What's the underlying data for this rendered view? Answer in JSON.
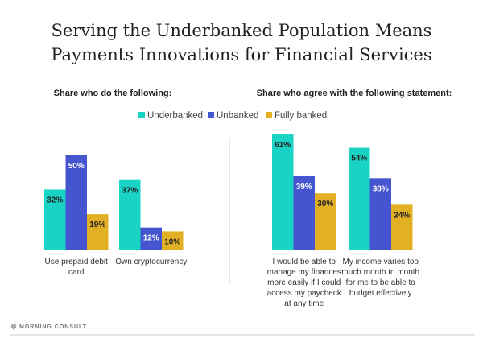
{
  "title_lines": [
    "Serving the Underbanked Population Means",
    "Payments Innovations for Financial Services"
  ],
  "logo_text": "MORNING CONSULT",
  "colors": {
    "Underbanked": "#19d3c5",
    "Unbanked": "#4554cf",
    "Fully banked": "#e2b024"
  },
  "legend": [
    "Underbanked",
    "Unbanked",
    "Fully banked"
  ],
  "chart_data": [
    {
      "type": "bar",
      "title": "Share who do the following:",
      "unit": "%",
      "ylim": [
        0,
        65
      ],
      "categories": [
        [
          "Use prepaid debit",
          "card"
        ],
        [
          "Own cryptocurrency"
        ]
      ],
      "series": [
        {
          "name": "Underbanked",
          "values": [
            32,
            37
          ]
        },
        {
          "name": "Unbanked",
          "values": [
            50,
            12
          ]
        },
        {
          "name": "Fully banked",
          "values": [
            19,
            10
          ]
        }
      ]
    },
    {
      "type": "bar",
      "title": "Share who agree with the following statement:",
      "unit": "%",
      "ylim": [
        0,
        65
      ],
      "categories": [
        [
          "I would be able to",
          "manage my finances",
          "more easily if I could",
          "access my paycheck",
          "at any time"
        ],
        [
          "My income varies too",
          "much month to month",
          "for me to be able to",
          "budget effectively"
        ]
      ],
      "series": [
        {
          "name": "Underbanked",
          "values": [
            61,
            54
          ]
        },
        {
          "name": "Unbanked",
          "values": [
            39,
            38
          ]
        },
        {
          "name": "Fully banked",
          "values": [
            30,
            24
          ]
        }
      ]
    }
  ]
}
